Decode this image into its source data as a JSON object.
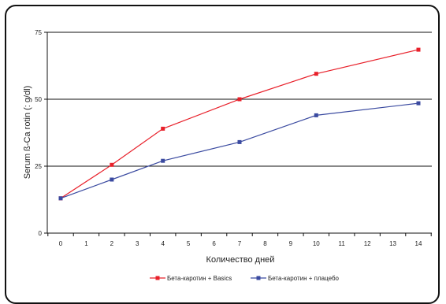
{
  "chart_data": {
    "type": "line",
    "title": "",
    "xlabel": "Количество дней",
    "ylabel": "Serum ß-Ca rotin (: g/dl)",
    "x_ticks": [
      0,
      1,
      2,
      3,
      4,
      5,
      6,
      7,
      8,
      9,
      10,
      11,
      12,
      13,
      14
    ],
    "y_ticks": [
      0,
      25,
      50,
      75
    ],
    "ylim": [
      0,
      75
    ],
    "xlim": [
      0,
      14
    ],
    "grid": "horizontal lines at 25, 50, 75",
    "legend_position": "bottom",
    "series": [
      {
        "name": "Бета-каротин + Basics",
        "color": "#e8202a",
        "x": [
          0,
          2,
          4,
          7,
          10,
          14
        ],
        "values": [
          13,
          25.5,
          39,
          50,
          59.5,
          68.5
        ]
      },
      {
        "name": "Бета-каротин + плацебо",
        "color": "#3a4aa0",
        "x": [
          0,
          2,
          4,
          7,
          10,
          14
        ],
        "values": [
          13,
          20,
          27,
          34,
          44,
          48.5
        ]
      }
    ]
  }
}
